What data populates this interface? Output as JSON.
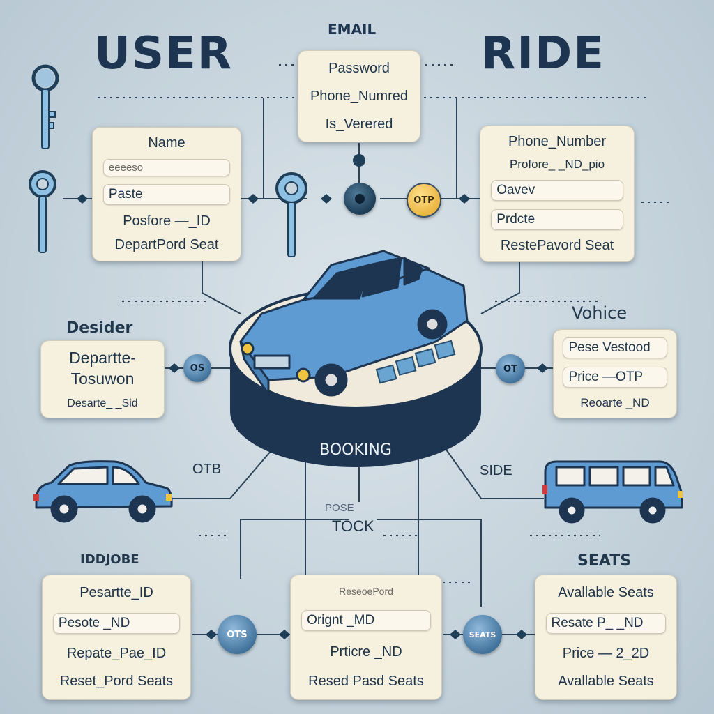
{
  "headings": {
    "user": "USER",
    "ride": "RIDE",
    "email": "EMAIL",
    "booking": "BOOKING"
  },
  "top_card": {
    "rows": [
      "Password",
      "Phone_Numred",
      "Is_Verered"
    ]
  },
  "name_card": {
    "title": "Name",
    "rows": [
      "eeeeso",
      "Paste",
      "Posfore —_ID",
      "DepartPord Seat"
    ]
  },
  "phone_card": {
    "title": "Phone_Number",
    "rows": [
      "Profore_ _ND_pio",
      "Oavev",
      "Prdcte",
      "RestePavord Seat"
    ]
  },
  "left_mid": {
    "title": "Desider",
    "rows": [
      "Departte-",
      "Tosuwon",
      "Desarte_ _Sid"
    ]
  },
  "right_mid": {
    "title": "Vohice",
    "rows": [
      "Pese Vestood",
      "Price —OTP",
      "Reoarte _ND"
    ]
  },
  "bottom_left": {
    "title": "IDDJOBE",
    "rows": [
      "Pesartte_ID",
      "Pesote _ND",
      "Repate_Pae_ID",
      "Reset_Pord Seats"
    ]
  },
  "bottom_mid": {
    "title": "POSE TOCK",
    "rows": [
      "ReseoePord",
      "Orignt _MD",
      "Prticre _ND",
      "Resed Pasd Seats"
    ]
  },
  "bottom_right": {
    "title": "SEATS",
    "rows": [
      "Avallable Seats",
      "Resate P_ _ND",
      "Price — 2_2D",
      "Avallable Seats"
    ]
  },
  "nodes": {
    "otp_gold": "OTP",
    "os": "OS",
    "ot": "OT",
    "ots": "OTS",
    "seats": "SEATS"
  },
  "labels": {
    "otb": "OTB",
    "side": "SIDE",
    "tock": "TOCK",
    "posa": "POSE"
  },
  "icons": [
    "key-icon",
    "car-icon",
    "van-icon",
    "booking-platform-icon"
  ],
  "colors": {
    "background": "#c7d4dd",
    "card": "#f6f0df",
    "car_blue": "#5e9bd3",
    "dark_text": "#1d3550",
    "gold": "#e9b23c"
  }
}
